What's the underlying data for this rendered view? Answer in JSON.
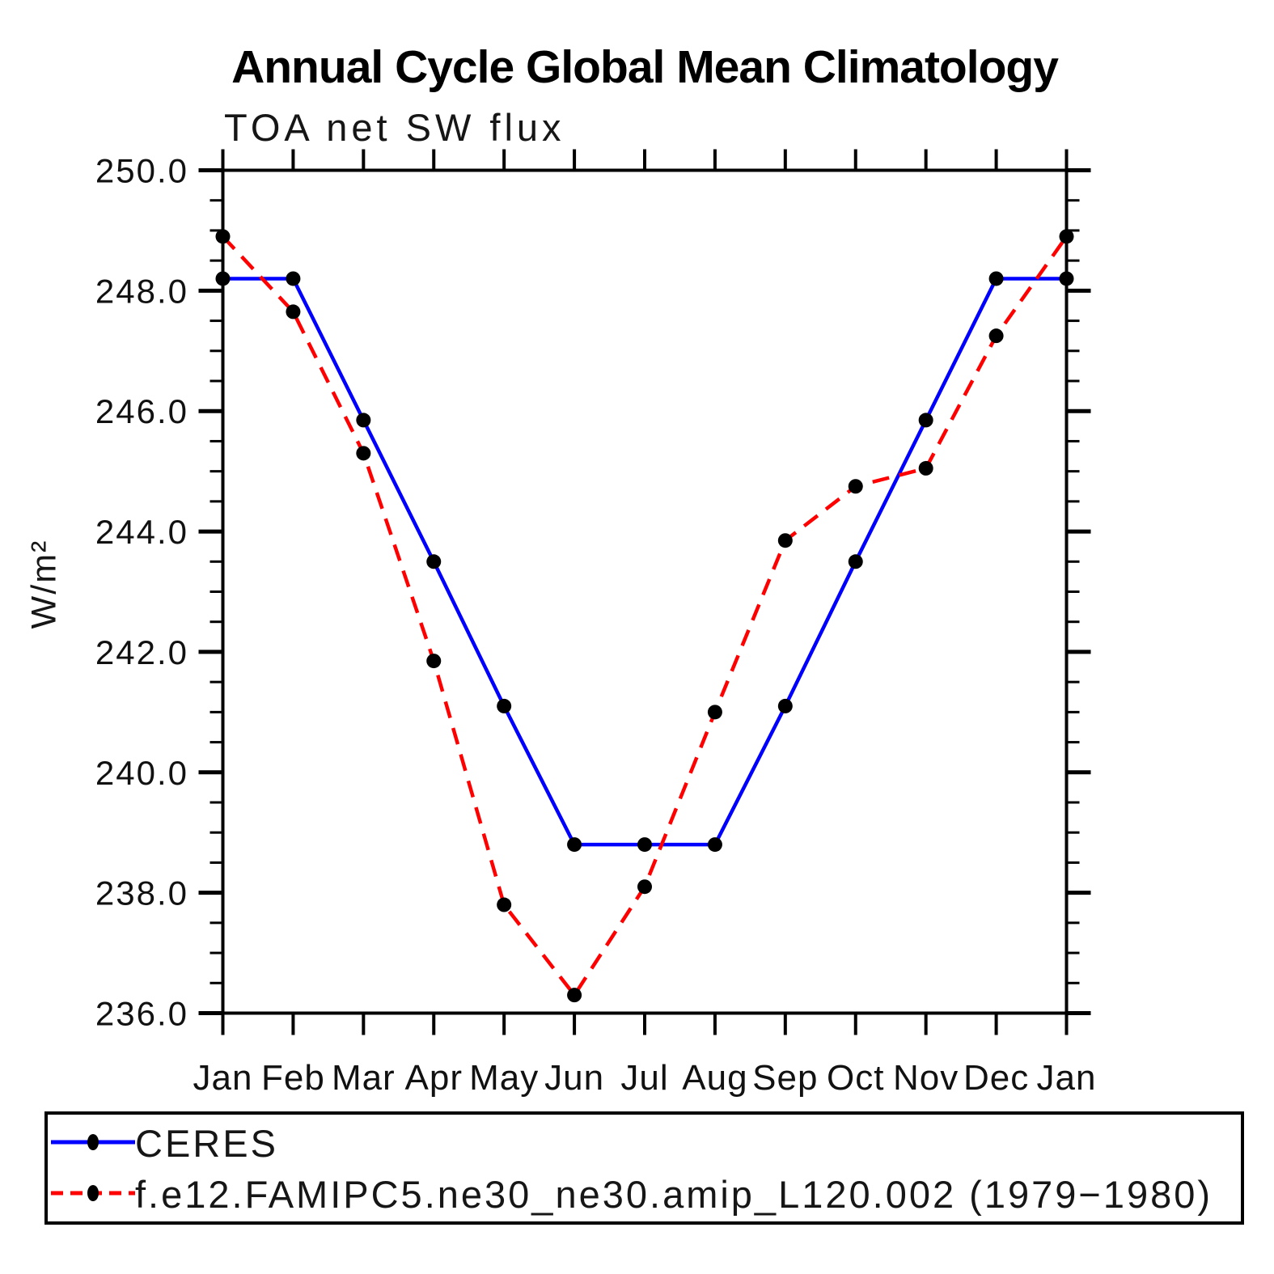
{
  "chart_data": {
    "type": "line",
    "title": "Annual Cycle Global Mean Climatology",
    "subtitle": "TOA net SW flux",
    "xlabel": "",
    "ylabel": "W/m²",
    "categories": [
      "Jan",
      "Feb",
      "Mar",
      "Apr",
      "May",
      "Jun",
      "Jul",
      "Aug",
      "Sep",
      "Oct",
      "Nov",
      "Dec",
      "Jan"
    ],
    "ylim": [
      236.0,
      250.0
    ],
    "ytick_major": 2.0,
    "ytick_minor": 0.5,
    "ytick_labels": [
      "236.0",
      "238.0",
      "240.0",
      "242.0",
      "244.0",
      "246.0",
      "248.0",
      "250.0"
    ],
    "grid": false,
    "legend_position": "bottom-left box",
    "series": [
      {
        "name": "CERES",
        "color": "#0000ff",
        "line_style": "solid",
        "marker": "filled-circle",
        "marker_color": "#000000",
        "values": [
          248.2,
          248.2,
          245.85,
          243.5,
          241.1,
          238.8,
          238.8,
          238.8,
          241.1,
          243.5,
          245.85,
          248.2,
          248.2
        ]
      },
      {
        "name": "f.e12.FAMIPC5.ne30_ne30.amip_L120.002 (1979−1980)",
        "color": "#ff0000",
        "line_style": "dashed",
        "marker": "filled-circle",
        "marker_color": "#000000",
        "values": [
          248.9,
          247.65,
          245.3,
          241.85,
          237.8,
          236.3,
          238.1,
          241.0,
          243.85,
          244.75,
          245.05,
          247.25,
          248.9
        ]
      }
    ]
  }
}
